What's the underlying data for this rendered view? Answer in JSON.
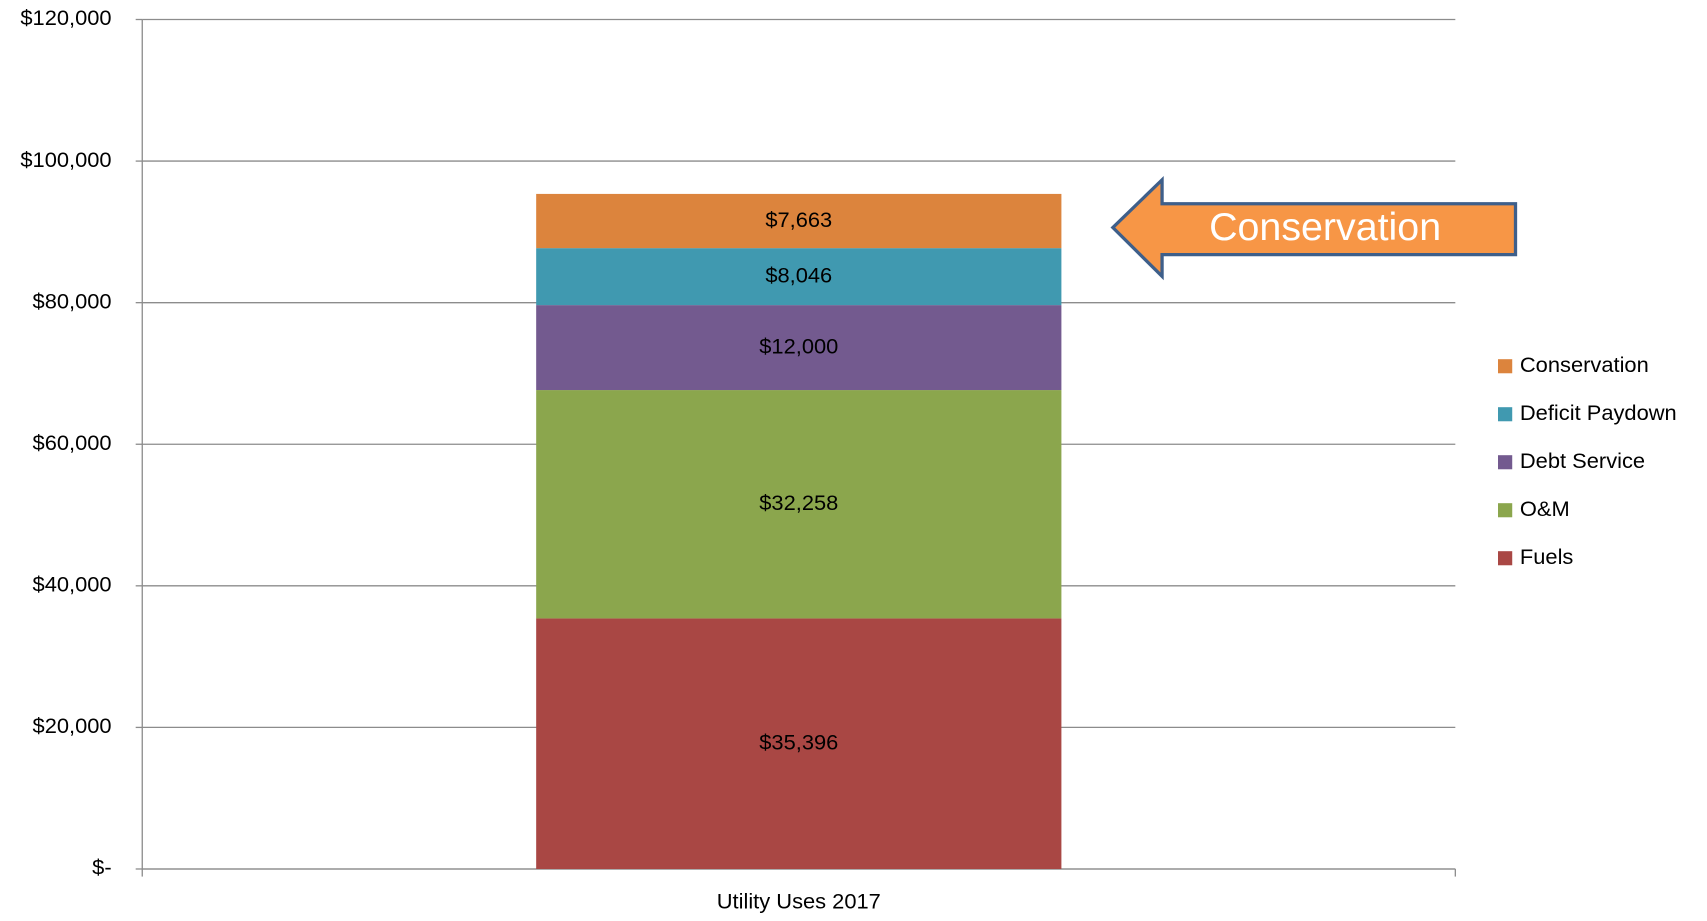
{
  "chart_data": {
    "type": "stacked_bar",
    "categories": [
      "Utility Uses 2017"
    ],
    "series": [
      {
        "name": "Fuels",
        "color": "#a94744",
        "values": [
          35396
        ],
        "value_labels": [
          "$35,396"
        ]
      },
      {
        "name": "O&M",
        "color": "#8ba64d",
        "values": [
          32258
        ],
        "value_labels": [
          "$32,258"
        ]
      },
      {
        "name": "Debt Service",
        "color": "#735a8f",
        "values": [
          12000
        ],
        "value_labels": [
          "$12,000"
        ]
      },
      {
        "name": "Deficit Paydown",
        "color": "#4099b0",
        "values": [
          8046
        ],
        "value_labels": [
          "$8,046"
        ]
      },
      {
        "name": "Conservation",
        "color": "#dc843d",
        "values": [
          7663
        ],
        "value_labels": [
          "$7,663"
        ]
      }
    ],
    "ylim": [
      0,
      120000
    ],
    "yticks": [
      {
        "value": 0,
        "label": "$-"
      },
      {
        "value": 20000,
        "label": "$20,000"
      },
      {
        "value": 40000,
        "label": "$40,000"
      },
      {
        "value": 60000,
        "label": "$60,000"
      },
      {
        "value": 80000,
        "label": "$80,000"
      },
      {
        "value": 100000,
        "label": "$100,000"
      },
      {
        "value": 120000,
        "label": "$120,000"
      }
    ],
    "grid": true,
    "legend": "right",
    "annotation": "Conservation"
  }
}
